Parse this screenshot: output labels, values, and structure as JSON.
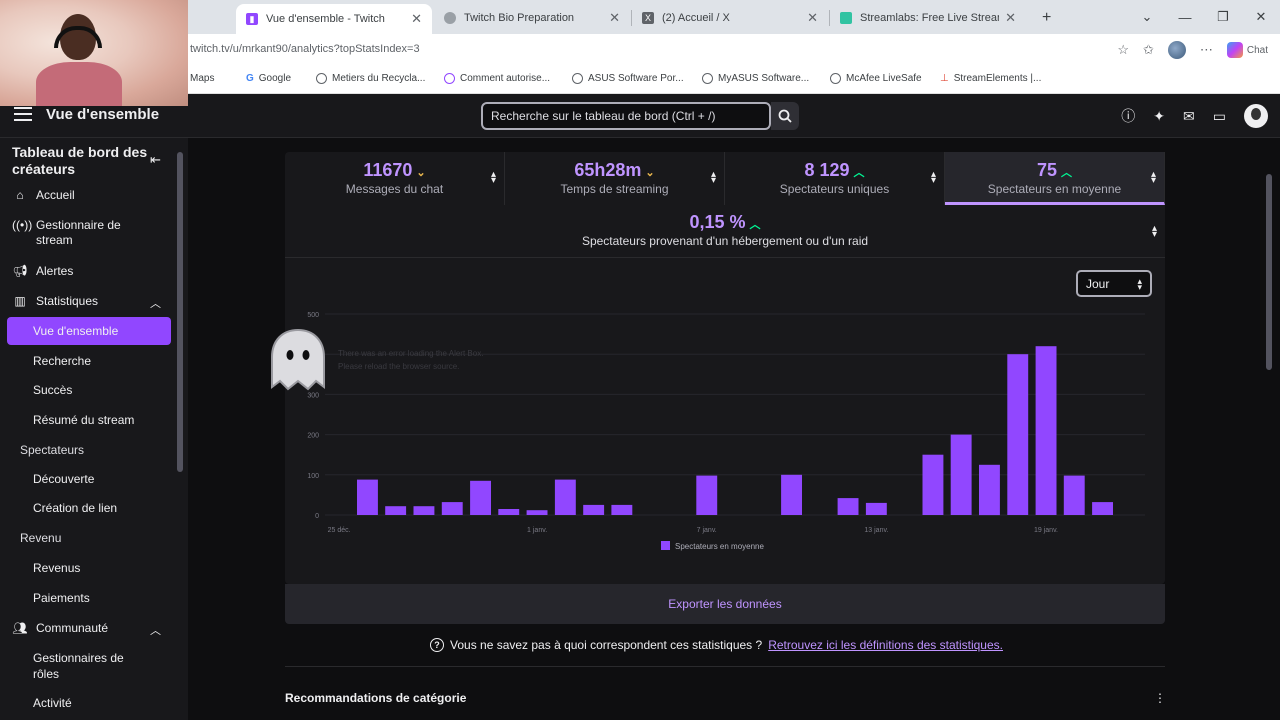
{
  "browser": {
    "tabs": [
      {
        "title": "Vue d'ensemble - Twitch",
        "active": true
      },
      {
        "title": "Twitch Bio Preparation",
        "active": false
      },
      {
        "title": "(2) Accueil / X",
        "active": false
      },
      {
        "title": "Streamlabs: Free Live Streaming &",
        "active": false
      }
    ],
    "url": "twitch.tv/u/mrkant90/analytics?topStatsIndex=3",
    "chat_label": "Chat",
    "bookmarks": [
      "Maps",
      "Google",
      "Metiers du Recycla...",
      "Comment autorise...",
      "ASUS Software Por...",
      "MyASUS Software...",
      "McAfee LiveSafe",
      "StreamElements |..."
    ]
  },
  "topbar": {
    "title": "Vue d'ensemble",
    "search_placeholder": "Recherche sur le tableau de bord (Ctrl + /)"
  },
  "sidebar": {
    "header": "Tableau de bord des créateurs",
    "items": {
      "accueil": "Accueil",
      "gestionnaire": "Gestionnaire de stream",
      "alertes": "Alertes",
      "statistiques": "Statistiques",
      "vue": "Vue d'ensemble",
      "recherche": "Recherche",
      "succes": "Succès",
      "resume": "Résumé du stream",
      "spectateurs": "Spectateurs",
      "decouverte": "Découverte",
      "creation": "Création de lien",
      "revenu": "Revenu",
      "revenus": "Revenus",
      "paiements": "Paiements",
      "communaute": "Communauté",
      "roles": "Gestionnaires de rôles",
      "activite": "Activité"
    }
  },
  "stats": {
    "tiles": [
      {
        "value": "11670",
        "label": "Messages du chat",
        "trend": "down"
      },
      {
        "value": "65h28m",
        "label": "Temps de streaming",
        "trend": "down"
      },
      {
        "value": "8 129",
        "label": "Spectateurs uniques",
        "trend": "up"
      },
      {
        "value": "75",
        "label": "Spectateurs en moyenne",
        "trend": "up"
      }
    ],
    "row2": {
      "value": "0,15 %",
      "label": "Spectateurs provenant d'un hébergement ou d'un raid",
      "trend": "up"
    },
    "period": "Jour",
    "export_label": "Exporter les données"
  },
  "help": {
    "text": "Vous ne savez pas à quoi correspondent ces statistiques ?",
    "link": "Retrouvez ici les définitions des statistiques."
  },
  "recommendations_title": "Recommandations de catégorie",
  "overlay": {
    "line1": "There was an error loading the Alert Box.",
    "line2": "Please reload the browser source."
  },
  "colors": {
    "accent": "#9147ff",
    "accent_light": "#bf94ff",
    "up": "#00f593",
    "down": "#e8b64d"
  },
  "chart_data": {
    "type": "bar",
    "ylim": [
      0,
      500
    ],
    "yticks": [
      0,
      100,
      200,
      300,
      400,
      500
    ],
    "xtick_labels": [
      "25 déc.",
      "1 janv.",
      "7 janv.",
      "13 janv.",
      "19 janv."
    ],
    "xtick_indices": [
      0,
      7,
      13,
      19,
      25
    ],
    "values": [
      0,
      88,
      22,
      22,
      32,
      85,
      15,
      12,
      88,
      25,
      25,
      0,
      0,
      98,
      0,
      0,
      100,
      0,
      42,
      30,
      0,
      150,
      200,
      125,
      400,
      420,
      98,
      32,
      0
    ],
    "series": [
      {
        "name": "Spectateurs en moyenne"
      }
    ]
  }
}
